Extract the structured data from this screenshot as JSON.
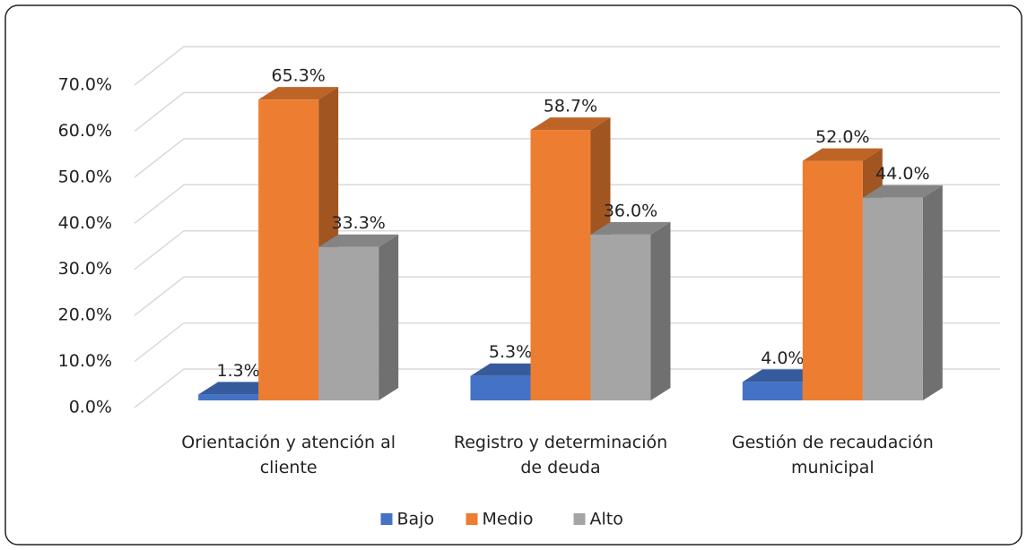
{
  "chart_data": {
    "type": "bar3d",
    "categories": [
      "Orientación y atención al cliente",
      "Registro y determinación de deuda",
      "Gestión de recaudación municipal"
    ],
    "series": [
      {
        "name": "Bajo",
        "color": "#4472c4",
        "values": [
          1.3,
          5.3,
          4.0
        ],
        "value_labels": [
          "1.3%",
          "5.3%",
          "4.0%"
        ]
      },
      {
        "name": "Medio",
        "color": "#ed7d31",
        "values": [
          65.3,
          58.7,
          52.0
        ],
        "value_labels": [
          "65.3%",
          "58.7%",
          "52.0%"
        ]
      },
      {
        "name": "Alto",
        "color": "#a5a5a5",
        "values": [
          33.3,
          36.0,
          44.0
        ],
        "value_labels": [
          "33.3%",
          "36.0%",
          "44.0%"
        ]
      }
    ],
    "ylim": [
      0,
      70
    ],
    "yticks": [
      {
        "value": 0,
        "label": "0.0%"
      },
      {
        "value": 10,
        "label": "10.0%"
      },
      {
        "value": 20,
        "label": "20.0%"
      },
      {
        "value": 30,
        "label": "30.0%"
      },
      {
        "value": 40,
        "label": "40.0%"
      },
      {
        "value": 50,
        "label": "50.0%"
      },
      {
        "value": 60,
        "label": "60.0%"
      },
      {
        "value": 70,
        "label": "70.0%"
      }
    ],
    "grid": true,
    "legend": "bottom"
  }
}
